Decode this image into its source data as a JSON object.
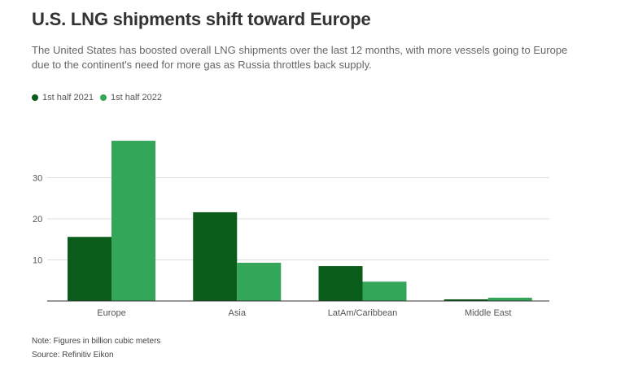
{
  "title": "U.S. LNG shipments shift toward Europe",
  "subtitle": "The United States has boosted overall LNG shipments over the last 12 months, with more vessels going to Europe due to the continent's need for more gas as Russia throttles back supply.",
  "note": "Note: Figures in billion cubic meters",
  "source": "Source: Refinitiv Eikon",
  "chart_data": {
    "type": "bar",
    "title": "U.S. LNG shipments shift toward Europe",
    "xlabel": "",
    "ylabel": "",
    "categories": [
      "Europe",
      "Asia",
      "LatAm/Caribbean",
      "Middle East"
    ],
    "series": [
      {
        "name": "1st half 2021",
        "values": [
          15.6,
          21.6,
          8.5,
          0.4
        ],
        "color": "#0a5c1a"
      },
      {
        "name": "1st half 2022",
        "values": [
          39.0,
          9.3,
          4.7,
          0.8
        ],
        "color": "#34a65a"
      }
    ],
    "ylim": [
      0,
      40
    ],
    "yticks": [
      10,
      20,
      30
    ],
    "grid": true,
    "legend": "top-left"
  }
}
